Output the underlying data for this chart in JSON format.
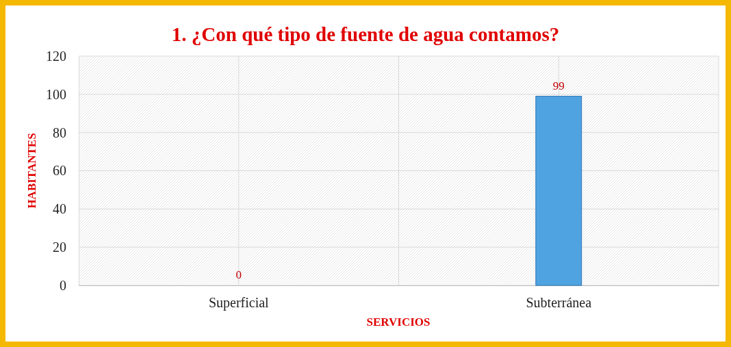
{
  "chart_data": {
    "type": "bar",
    "title": "1. ¿Con qué tipo de fuente de agua contamos?",
    "xlabel": "SERVICIOS",
    "ylabel": "HABITANTES",
    "categories": [
      "Superficial",
      "Subterránea"
    ],
    "values": [
      0,
      99
    ],
    "color": "#4fa3e0",
    "ylim": [
      0,
      120
    ],
    "yticks": [
      0,
      20,
      40,
      60,
      80,
      100,
      120
    ],
    "grid": true,
    "data_labels": true
  }
}
